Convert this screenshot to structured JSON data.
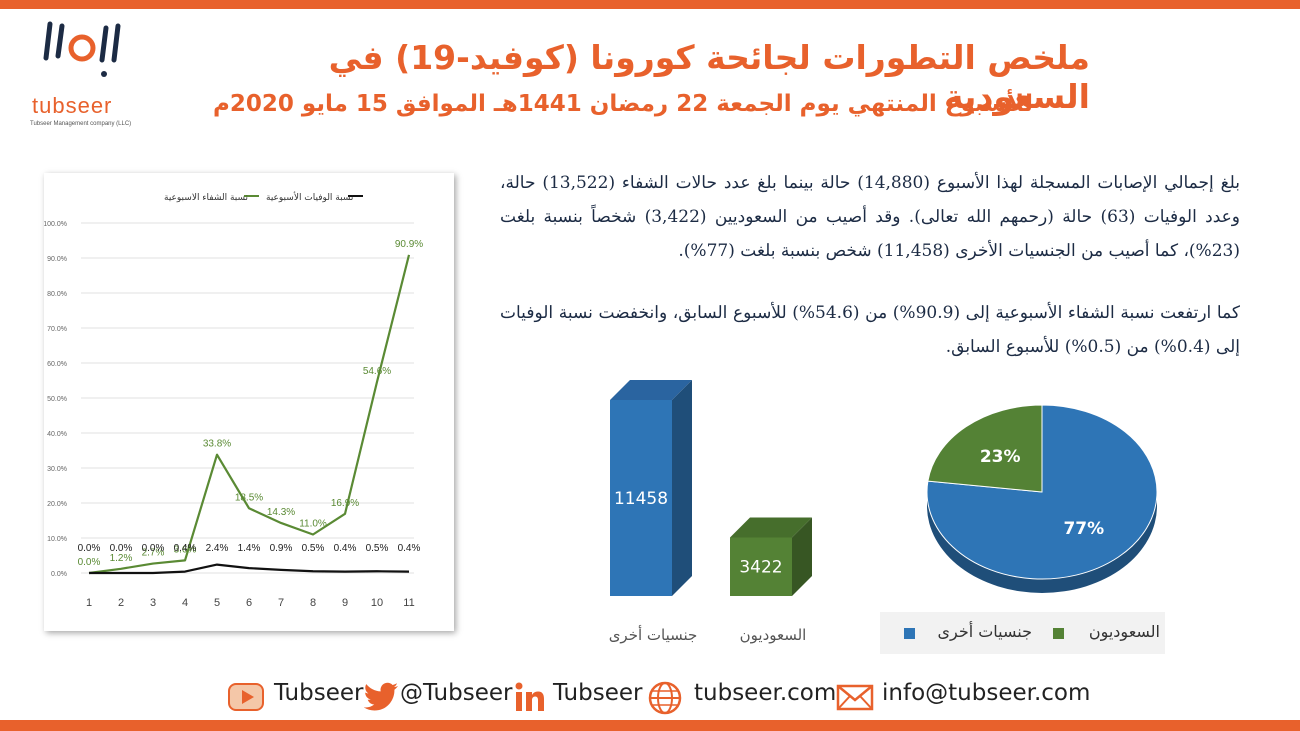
{
  "header": {
    "title": "ملخص التطورات لجائحة كورونا (كوفيد-19) في السعودية",
    "subtitle": "للأسبوع المنتهي يوم الجمعة 22 رمضان 1441هـ الموافق 15 مايو 2020م"
  },
  "logo": {
    "name": "tubseer",
    "tagline": "Tubseer Management company (LLC)"
  },
  "paragraphs": {
    "p1": "بلغ إجمالي الإصابات المسجلة لهذا الأسبوع (14,880) حالة بينما بلغ عدد حالات الشفاء (13,522) حالة، وعدد الوفيات (63) حالة (رحمهم الله تعالى). وقد أصيب من السعوديين (3,422) شخصاً بنسبة بلغت (23%)، كما أصيب من الجنسيات الأخرى (11,458) شخص بنسبة بلغت (77%).",
    "p2": "كما ارتفعت نسبة الشفاء الأسبوعية إلى (90.9%) من (54.6%) للأسبوع السابق، وانخفضت نسبة الوفيات إلى (0.4%) من (0.5%) للأسبوع السابق."
  },
  "colors": {
    "accent": "#e8612c",
    "recovery_line": "#5a8a34",
    "death_line": "#111111",
    "blue": "#2e75b6",
    "green": "#548235"
  },
  "chart_data": [
    {
      "type": "line",
      "x": [
        "1",
        "2",
        "3",
        "4",
        "5",
        "6",
        "7",
        "8",
        "9",
        "10",
        "11"
      ],
      "ylim": [
        0,
        100
      ],
      "yticks": [
        "0.0%",
        "10.0%",
        "20.0%",
        "30.0%",
        "40.0%",
        "50.0%",
        "60.0%",
        "70.0%",
        "80.0%",
        "90.0%",
        "100.0%"
      ],
      "legend_position": "top",
      "series": [
        {
          "name": "نسبة الشفاء الاسبوعية",
          "values": [
            0.0,
            1.2,
            2.7,
            3.6,
            33.8,
            18.5,
            14.3,
            11.0,
            16.9,
            54.6,
            90.9
          ],
          "labels": [
            "0.0%",
            "1.2%",
            "2.7%",
            "3.6%",
            "33.8%",
            "18.5%",
            "14.3%",
            "11.0%",
            "16.9%",
            "54.6%",
            "90.9%"
          ]
        },
        {
          "name": "نسبة الوفيات الأسبوعية",
          "values": [
            0.0,
            0.0,
            0.0,
            0.4,
            2.4,
            1.4,
            0.9,
            0.5,
            0.4,
            0.5,
            0.4
          ],
          "labels": [
            "0.0%",
            "0.0%",
            "0.0%",
            "0.4%",
            "2.4%",
            "1.4%",
            "0.9%",
            "0.5%",
            "0.4%",
            "0.5%",
            "0.4%"
          ]
        }
      ]
    },
    {
      "type": "bar",
      "categories": [
        "جنسيات أخرى",
        "السعوديون"
      ],
      "values": [
        11458,
        3422
      ]
    },
    {
      "type": "pie",
      "legend_position": "bottom",
      "slices": [
        {
          "name": "جنسيات أخرى",
          "value": 77,
          "label": "77%"
        },
        {
          "name": "السعوديون",
          "value": 23,
          "label": "23%"
        }
      ]
    }
  ],
  "footer": {
    "youtube": "Tubseer",
    "twitter": "@Tubseer",
    "linkedin": "Tubseer",
    "website": "tubseer.com",
    "email": "info@tubseer.com",
    "icons": [
      "youtube-icon",
      "twitter-icon",
      "linkedin-icon",
      "globe-icon",
      "mail-icon"
    ]
  }
}
